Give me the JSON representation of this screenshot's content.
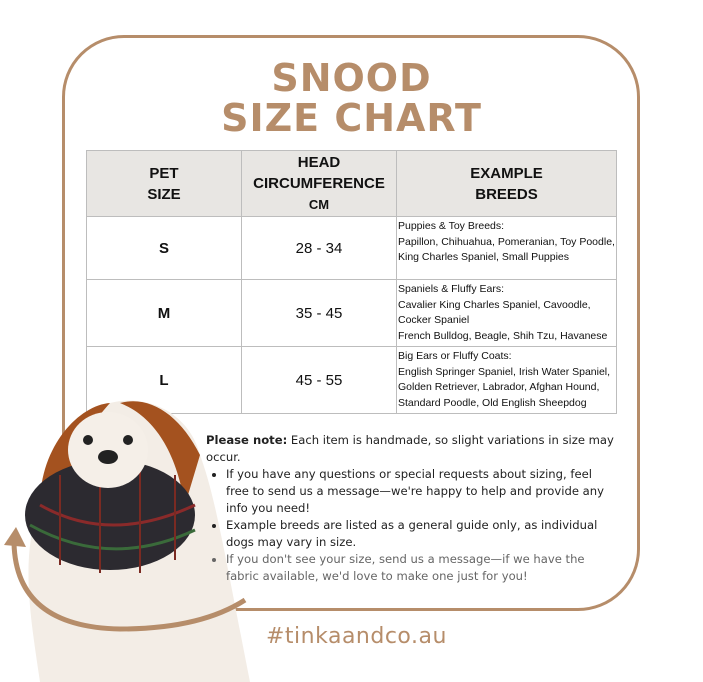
{
  "title": {
    "line1": "SNOOD",
    "line2": "SIZE CHART"
  },
  "table": {
    "headers": [
      [
        "PET",
        "SIZE"
      ],
      [
        "HEAD",
        "CIRCUMFERENCE",
        "CM"
      ],
      [
        "EXAMPLE",
        "BREEDS"
      ]
    ],
    "rows": [
      {
        "size": "S",
        "circumference": "28 - 34",
        "breeds": [
          "Puppies & Toy Breeds:",
          "Papillon, Chihuahua, Pomeranian, Toy Poodle, King Charles Spaniel, Small Puppies"
        ]
      },
      {
        "size": "M",
        "circumference": "35 - 45",
        "breeds": [
          "Spaniels & Fluffy Ears:",
          "Cavalier King Charles Spaniel, Cavoodle, Cocker Spaniel",
          "French Bulldog, Beagle, Shih Tzu, Havanese"
        ]
      },
      {
        "size": "L",
        "circumference": "45 - 55",
        "breeds": [
          "Big Ears or Fluffy Coats:",
          "English Springer Spaniel, Irish Water Spaniel, Golden Retriever, Labrador, Afghan Hound, Standard Poodle, Old English Sheepdog"
        ]
      }
    ]
  },
  "notes": {
    "lead_bold": "Please note:",
    "lead": " Each item is handmade, so slight variations in size may occur.",
    "bullets": [
      "If you have any questions or special requests about sizing, feel free to send us a message—we're happy to help and provide any info you need!",
      "Example breeds are listed as a general guide only, as individual dogs may vary in size.",
      "If you don't see your size, send us a message—if we have the fabric available, we'd love to make one just for you!"
    ]
  },
  "hashtag": "#tinkaandco.au",
  "colors": {
    "accent": "#b68d6a",
    "header_bg": "#e8e6e3"
  }
}
